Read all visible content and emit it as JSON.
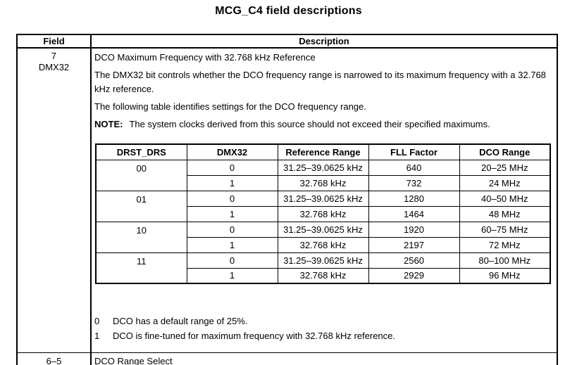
{
  "title": "MCG_C4 field descriptions",
  "table": {
    "col_field": "Field",
    "col_description": "Description",
    "row_dmx32": {
      "bits": "7",
      "name": "DMX32",
      "p1": "DCO Maximum Frequency with 32.768 kHz Reference",
      "p2": "The DMX32 bit controls whether the DCO frequency range is narrowed to its maximum frequency with a 32.768 kHz reference.",
      "p3": "The following table identifies settings for the DCO frequency range.",
      "note_label": "NOTE:",
      "note_text": "The system clocks derived from this source should not exceed their specified maximums.",
      "footnote0_num": "0",
      "footnote0_text": "DCO has a default range of 25%.",
      "footnote1_num": "1",
      "footnote1_text": "DCO is fine-tuned for maximum frequency with 32.768 kHz reference."
    },
    "row_drs": {
      "bits": "6–5",
      "description": "DCO Range Select"
    }
  },
  "inner_table": {
    "headers": [
      "DRST_DRS",
      "DMX32",
      "Reference Range",
      "FLL Factor",
      "DCO Range"
    ],
    "groups": [
      {
        "drst": "00",
        "rows": [
          [
            "0",
            "31.25–39.0625 kHz",
            "640",
            "20–25 MHz"
          ],
          [
            "1",
            "32.768 kHz",
            "732",
            "24 MHz"
          ]
        ]
      },
      {
        "drst": "01",
        "rows": [
          [
            "0",
            "31.25–39.0625 kHz",
            "1280",
            "40–50 MHz"
          ],
          [
            "1",
            "32.768 kHz",
            "1464",
            "48 MHz"
          ]
        ]
      },
      {
        "drst": "10",
        "rows": [
          [
            "0",
            "31.25–39.0625 kHz",
            "1920",
            "60–75 MHz"
          ],
          [
            "1",
            "32.768 kHz",
            "2197",
            "72 MHz"
          ]
        ]
      },
      {
        "drst": "11",
        "rows": [
          [
            "0",
            "31.25–39.0625 kHz",
            "2560",
            "80–100 MHz"
          ],
          [
            "1",
            "32.768 kHz",
            "2929",
            "96 MHz"
          ]
        ]
      }
    ]
  }
}
